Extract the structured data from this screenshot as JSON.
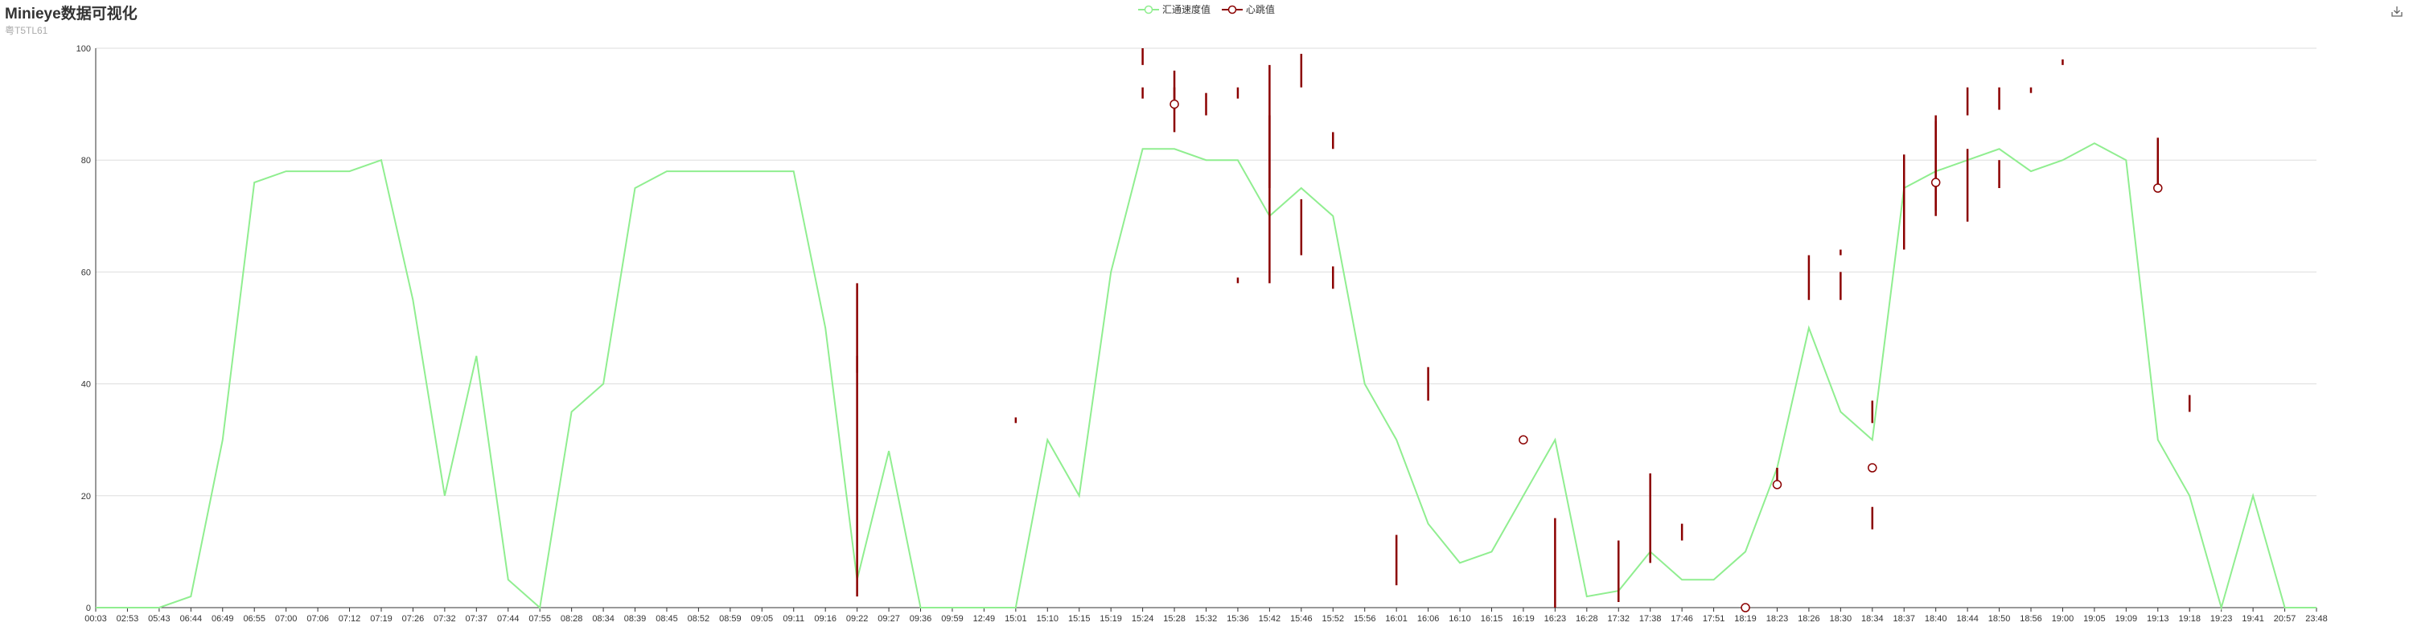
{
  "header": {
    "title": "Minieye数据可视化",
    "subtitle": "粤T5TL61"
  },
  "toolbar": {
    "download_icon": "download-icon"
  },
  "chart_data": {
    "type": "line",
    "title": "Minieye数据可视化",
    "subtitle": "粤T5TL61",
    "xlabel": "",
    "ylabel": "",
    "ylim": [
      0,
      100
    ],
    "yticks": [
      0,
      20,
      40,
      60,
      80,
      100
    ],
    "legend_position": "top-center",
    "grid": true,
    "colors": {
      "speed": "#90ee90",
      "heart": "#8b0000"
    },
    "categories": [
      "00:03",
      "02:53",
      "05:43",
      "06:44",
      "06:49",
      "06:55",
      "07:00",
      "07:06",
      "07:12",
      "07:19",
      "07:26",
      "07:32",
      "07:37",
      "07:44",
      "07:55",
      "08:28",
      "08:34",
      "08:39",
      "08:45",
      "08:52",
      "08:59",
      "09:05",
      "09:11",
      "09:16",
      "09:22",
      "09:27",
      "09:36",
      "09:59",
      "12:49",
      "15:01",
      "15:10",
      "15:15",
      "15:19",
      "15:24",
      "15:28",
      "15:32",
      "15:36",
      "15:42",
      "15:46",
      "15:52",
      "15:56",
      "16:01",
      "16:06",
      "16:10",
      "16:15",
      "16:19",
      "16:23",
      "16:28",
      "17:32",
      "17:38",
      "17:46",
      "17:51",
      "18:19",
      "18:23",
      "18:26",
      "18:30",
      "18:34",
      "18:37",
      "18:40",
      "18:44",
      "18:50",
      "18:56",
      "19:00",
      "19:05",
      "19:09",
      "19:13",
      "19:18",
      "19:23",
      "19:41",
      "20:57",
      "23:48"
    ],
    "series": [
      {
        "name": "汇通速度值",
        "values": [
          0,
          0,
          0,
          2,
          30,
          76,
          78,
          78,
          78,
          80,
          55,
          20,
          45,
          5,
          0,
          35,
          40,
          75,
          78,
          78,
          78,
          78,
          78,
          50,
          5,
          28,
          0,
          0,
          0,
          0,
          30,
          20,
          60,
          82,
          82,
          80,
          80,
          70,
          75,
          70,
          40,
          30,
          15,
          8,
          10,
          20,
          30,
          2,
          3,
          10,
          5,
          5,
          10,
          25,
          50,
          35,
          30,
          75,
          78,
          80,
          82,
          78,
          80,
          83,
          80,
          30,
          20,
          0,
          20,
          0,
          0
        ]
      },
      {
        "name": "心跳值",
        "values": [
          null,
          null,
          null,
          null,
          null,
          null,
          null,
          null,
          null,
          null,
          null,
          null,
          null,
          null,
          null,
          null,
          null,
          null,
          null,
          null,
          null,
          null,
          null,
          null,
          null,
          null,
          null,
          null,
          null,
          null,
          null,
          null,
          null,
          null,
          90,
          null,
          null,
          null,
          null,
          null,
          null,
          null,
          null,
          null,
          null,
          30,
          null,
          null,
          null,
          null,
          null,
          null,
          0,
          22,
          null,
          null,
          25,
          null,
          76,
          null,
          null,
          null,
          null,
          null,
          null,
          75,
          null,
          null,
          null,
          null,
          null
        ]
      }
    ],
    "bursts": [
      {
        "x": "09:22",
        "values": [
          58,
          2
        ]
      },
      {
        "x": "09:22",
        "values": [
          45,
          42
        ]
      },
      {
        "x": "15:01",
        "values": [
          34,
          33
        ]
      },
      {
        "x": "15:24",
        "values": [
          93,
          91
        ]
      },
      {
        "x": "15:24",
        "values": [
          100,
          97
        ]
      },
      {
        "x": "15:28",
        "values": [
          96,
          85
        ]
      },
      {
        "x": "15:28",
        "values": [
          93,
          89
        ]
      },
      {
        "x": "15:32",
        "values": [
          92,
          88
        ]
      },
      {
        "x": "15:36",
        "values": [
          59,
          58
        ]
      },
      {
        "x": "15:36",
        "values": [
          93,
          91
        ]
      },
      {
        "x": "15:42",
        "values": [
          97,
          58
        ]
      },
      {
        "x": "15:42",
        "values": [
          88,
          75
        ]
      },
      {
        "x": "15:46",
        "values": [
          73,
          63
        ]
      },
      {
        "x": "15:46",
        "values": [
          99,
          93
        ]
      },
      {
        "x": "15:52",
        "values": [
          85,
          82
        ]
      },
      {
        "x": "15:52",
        "values": [
          61,
          57
        ]
      },
      {
        "x": "16:01",
        "values": [
          13,
          4
        ]
      },
      {
        "x": "16:06",
        "values": [
          43,
          37
        ]
      },
      {
        "x": "16:23",
        "values": [
          16,
          0
        ]
      },
      {
        "x": "17:32",
        "values": [
          12,
          1
        ]
      },
      {
        "x": "17:38",
        "values": [
          24,
          8
        ]
      },
      {
        "x": "17:46",
        "values": [
          15,
          12
        ]
      },
      {
        "x": "18:23",
        "values": [
          25,
          22
        ]
      },
      {
        "x": "18:26",
        "values": [
          63,
          55
        ]
      },
      {
        "x": "18:30",
        "values": [
          60,
          55
        ]
      },
      {
        "x": "18:30",
        "values": [
          64,
          63
        ]
      },
      {
        "x": "18:34",
        "values": [
          18,
          14
        ]
      },
      {
        "x": "18:34",
        "values": [
          37,
          33
        ]
      },
      {
        "x": "18:37",
        "values": [
          81,
          64
        ]
      },
      {
        "x": "18:40",
        "values": [
          88,
          70
        ]
      },
      {
        "x": "18:40",
        "values": [
          87,
          71
        ]
      },
      {
        "x": "18:44",
        "values": [
          82,
          69
        ]
      },
      {
        "x": "18:44",
        "values": [
          93,
          88
        ]
      },
      {
        "x": "18:50",
        "values": [
          80,
          75
        ]
      },
      {
        "x": "18:50",
        "values": [
          93,
          89
        ]
      },
      {
        "x": "18:56",
        "values": [
          93,
          92
        ]
      },
      {
        "x": "19:00",
        "values": [
          98,
          97
        ]
      },
      {
        "x": "19:13",
        "values": [
          84,
          75
        ]
      },
      {
        "x": "19:18",
        "values": [
          38,
          35
        ]
      }
    ]
  }
}
